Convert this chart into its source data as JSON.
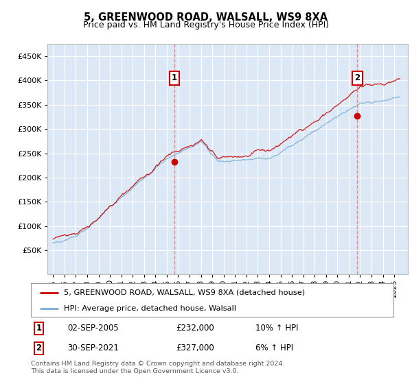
{
  "title": "5, GREENWOOD ROAD, WALSALL, WS9 8XA",
  "subtitle": "Price paid vs. HM Land Registry's House Price Index (HPI)",
  "legend_line1": "5, GREENWOOD ROAD, WALSALL, WS9 8XA (detached house)",
  "legend_line2": "HPI: Average price, detached house, Walsall",
  "annotation1_date": "02-SEP-2005",
  "annotation1_price": "£232,000",
  "annotation1_hpi": "10% ↑ HPI",
  "annotation2_date": "30-SEP-2021",
  "annotation2_price": "£327,000",
  "annotation2_hpi": "6% ↑ HPI",
  "footnote": "Contains HM Land Registry data © Crown copyright and database right 2024.\nThis data is licensed under the Open Government Licence v3.0.",
  "red_color": "#cc0000",
  "blue_color": "#7aaed6",
  "bg_color": "#dce8f5",
  "grid_color": "#ffffff",
  "sale1_year": 2005.67,
  "sale1_price": 232000,
  "sale2_year": 2021.75,
  "sale2_price": 327000,
  "ylim_min": 0,
  "ylim_max": 475000,
  "xlim_min": 1994.5,
  "xlim_max": 2026.2
}
